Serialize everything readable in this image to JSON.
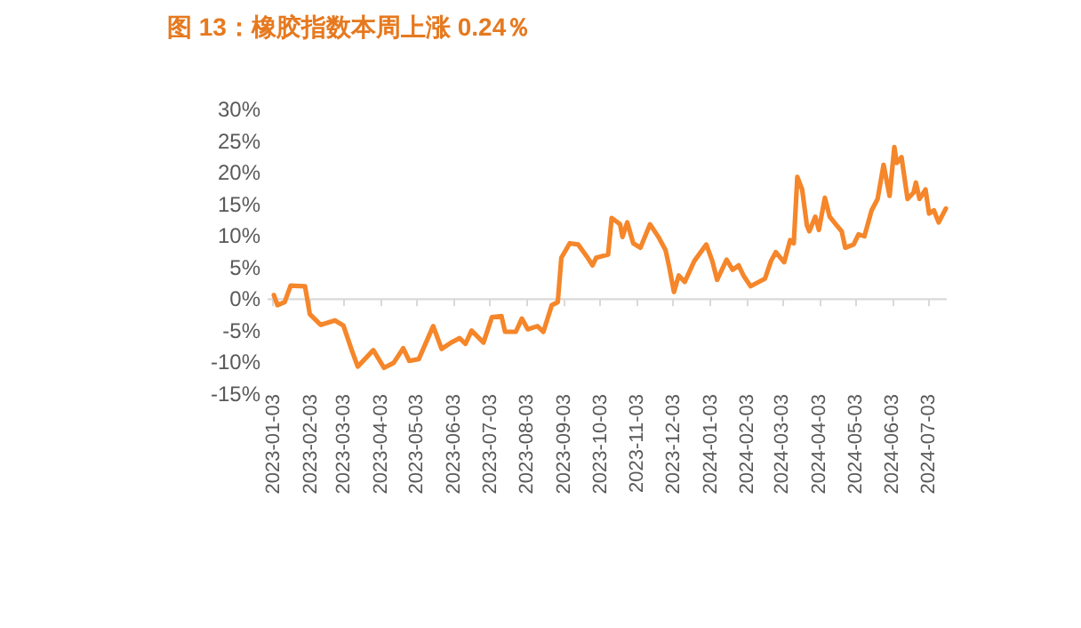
{
  "chart_data": {
    "type": "line",
    "title": "图 13：橡胶指数本周上涨 0.24％",
    "x": [
      "2023-01-04",
      "2023-01-07",
      "2023-01-13",
      "2023-01-18",
      "2023-01-30",
      "2023-02-03",
      "2023-02-12",
      "2023-02-24",
      "2023-03-03",
      "2023-03-10",
      "2023-03-15",
      "2023-03-28",
      "2023-04-06",
      "2023-04-14",
      "2023-04-22",
      "2023-04-27",
      "2023-05-05",
      "2023-05-17",
      "2023-05-24",
      "2023-06-01",
      "2023-06-08",
      "2023-06-13",
      "2023-06-18",
      "2023-06-28",
      "2023-07-05",
      "2023-07-13",
      "2023-07-16",
      "2023-07-25",
      "2023-07-30",
      "2023-08-04",
      "2023-08-12",
      "2023-08-17",
      "2023-08-24",
      "2023-08-29",
      "2023-09-01",
      "2023-09-08",
      "2023-09-15",
      "2023-09-23",
      "2023-09-27",
      "2023-09-30",
      "2023-10-10",
      "2023-10-13",
      "2023-10-20",
      "2023-10-22",
      "2023-10-26",
      "2023-10-31",
      "2023-11-06",
      "2023-11-14",
      "2023-11-21",
      "2023-11-27",
      "2023-11-30",
      "2023-12-04",
      "2023-12-08",
      "2023-12-13",
      "2023-12-21",
      "2023-12-31",
      "2024-01-05",
      "2024-01-09",
      "2024-01-17",
      "2024-01-22",
      "2024-01-27",
      "2024-01-31",
      "2024-02-06",
      "2024-02-18",
      "2024-02-23",
      "2024-02-27",
      "2024-03-05",
      "2024-03-10",
      "2024-03-13",
      "2024-03-16",
      "2024-03-20",
      "2024-03-24",
      "2024-03-26",
      "2024-03-31",
      "2024-04-03",
      "2024-04-08",
      "2024-04-12",
      "2024-04-18",
      "2024-04-22",
      "2024-04-25",
      "2024-05-02",
      "2024-05-06",
      "2024-05-11",
      "2024-05-17",
      "2024-05-22",
      "2024-05-27",
      "2024-06-01",
      "2024-06-05",
      "2024-06-07",
      "2024-06-11",
      "2024-06-16",
      "2024-06-21",
      "2024-06-23",
      "2024-06-26",
      "2024-07-01",
      "2024-07-04",
      "2024-07-08",
      "2024-07-12",
      "2024-07-18"
    ],
    "series": [
      {
        "color": "#f5862a",
        "values": [
          0.5,
          -1.1,
          -0.6,
          2.0,
          1.9,
          -2.5,
          -4.2,
          -3.5,
          -4.3,
          -8.2,
          -10.8,
          -8.2,
          -11.0,
          -10.2,
          -7.9,
          -9.9,
          -9.6,
          -4.4,
          -8.0,
          -7.0,
          -6.3,
          -7.2,
          -5.1,
          -7.0,
          -3.0,
          -2.8,
          -5.3,
          -5.3,
          -3.2,
          -4.9,
          -4.4,
          -5.3,
          -1.1,
          -0.6,
          6.4,
          8.7,
          8.5,
          6.4,
          5.2,
          6.4,
          6.9,
          12.7,
          11.7,
          9.7,
          12.0,
          8.7,
          8.0,
          11.7,
          9.7,
          7.6,
          5.0,
          1.0,
          3.6,
          2.6,
          5.9,
          8.5,
          5.9,
          2.9,
          6.1,
          4.5,
          5.2,
          3.6,
          1.9,
          3.1,
          5.9,
          7.3,
          5.7,
          9.2,
          8.7,
          19.2,
          17.2,
          11.5,
          10.6,
          12.9,
          10.8,
          15.9,
          12.9,
          11.5,
          10.6,
          8.0,
          8.5,
          10.1,
          9.8,
          13.9,
          15.7,
          21.1,
          16.2,
          23.9,
          21.4,
          22.3,
          15.7,
          16.7,
          18.3,
          15.7,
          17.2,
          13.4,
          13.9,
          12.0,
          14.2
        ]
      }
    ],
    "xlim": [
      "2022-12-29",
      "2024-07-18"
    ],
    "xticks": [
      "2023-01-03",
      "2023-02-03",
      "2023-03-03",
      "2023-04-03",
      "2023-05-03",
      "2023-06-03",
      "2023-07-03",
      "2023-08-03",
      "2023-09-03",
      "2023-10-03",
      "2023-11-03",
      "2023-12-03",
      "2024-01-03",
      "2024-02-03",
      "2024-03-03",
      "2024-04-03",
      "2024-05-03",
      "2024-06-03",
      "2024-07-03"
    ],
    "ylim": [
      -15,
      30
    ],
    "yticks": [
      {
        "value": -15,
        "label": "-15%"
      },
      {
        "value": -10,
        "label": "-10%"
      },
      {
        "value": -5,
        "label": "-5%"
      },
      {
        "value": 0,
        "label": "0%"
      },
      {
        "value": 5,
        "label": "5%"
      },
      {
        "value": 10,
        "label": "10%"
      },
      {
        "value": 15,
        "label": "15%"
      },
      {
        "value": 20,
        "label": "20%"
      },
      {
        "value": 25,
        "label": "25%"
      },
      {
        "value": 30,
        "label": "30%"
      }
    ],
    "marker": "none",
    "line_style": "solid"
  }
}
